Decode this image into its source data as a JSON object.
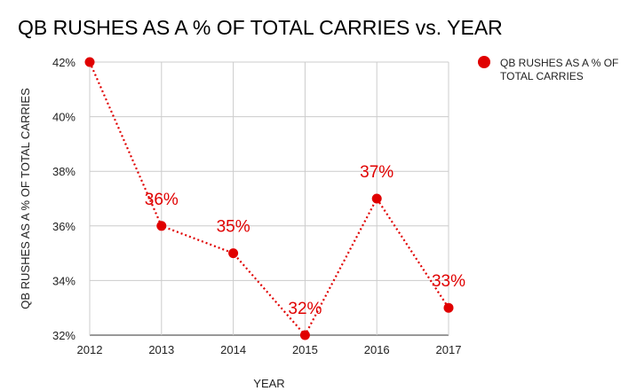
{
  "chart_data": {
    "type": "line",
    "title": "QB RUSHES AS A % OF TOTAL CARRIES vs. YEAR",
    "xlabel": "YEAR",
    "ylabel": "QB RUSHES AS A % OF TOTAL CARRIES",
    "x": [
      "2012",
      "2013",
      "2014",
      "2015",
      "2016",
      "2017"
    ],
    "series": [
      {
        "name": "QB RUSHES AS A % OF TOTAL CARRIES",
        "values": [
          42,
          36,
          35,
          32,
          37,
          33
        ],
        "labels": [
          "",
          "36%",
          "35%",
          "32%",
          "37%",
          "33%"
        ],
        "color": "#e00000",
        "line_style": "dotted"
      }
    ],
    "ylim": [
      32,
      42
    ],
    "yticks": [
      "32%",
      "34%",
      "36%",
      "38%",
      "40%",
      "42%"
    ],
    "ytick_values": [
      32,
      34,
      36,
      38,
      40,
      42
    ],
    "grid": true,
    "legend_position": "top-right",
    "legend_lines": [
      "QB RUSHES AS A % OF",
      "TOTAL CARRIES"
    ]
  }
}
